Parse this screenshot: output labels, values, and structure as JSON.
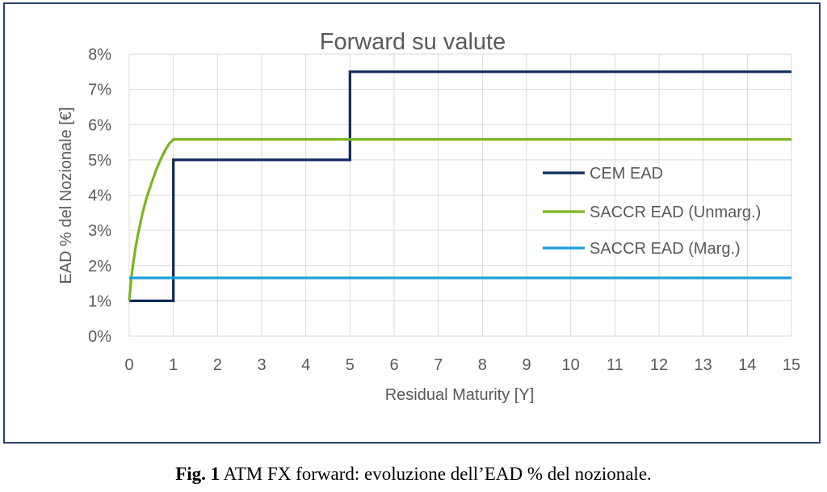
{
  "caption": {
    "label": "Fig. 1",
    "text": " ATM FX forward: evoluzione dell’EAD % del nozionale."
  },
  "colors": {
    "cem": "#0e2a5c",
    "saccr_unmarg": "#7ab51d",
    "saccr_marg": "#1ba1d8",
    "grid": "#d9d9d9",
    "text": "#595959",
    "frame": "#2b3f6b"
  },
  "chart_data": {
    "type": "line",
    "title": "Forward su valute",
    "xlabel": "Residual Maturity [Y]",
    "ylabel": "EAD  % del Nozionale [€]",
    "xlim": [
      0,
      15
    ],
    "ylim": [
      0,
      0.08
    ],
    "x_ticks": [
      0,
      1,
      2,
      3,
      4,
      5,
      6,
      7,
      8,
      9,
      10,
      11,
      12,
      13,
      14,
      15
    ],
    "x_tick_labels": [
      "0",
      "1",
      "2",
      "3",
      "4",
      "5",
      "6",
      "7",
      "8",
      "9",
      "10",
      "11",
      "12",
      "13",
      "14",
      "15"
    ],
    "y_ticks": [
      0,
      0.01,
      0.02,
      0.03,
      0.04,
      0.05,
      0.06,
      0.07,
      0.08
    ],
    "y_tick_labels": [
      "0%",
      "1%",
      "2%",
      "3%",
      "4%",
      "5%",
      "6%",
      "7%",
      "8%"
    ],
    "grid": true,
    "legend_position": "center-right",
    "series": [
      {
        "name": "CEM EAD",
        "color_key": "cem",
        "points": [
          [
            0,
            0.01
          ],
          [
            1,
            0.01
          ],
          [
            1,
            0.05
          ],
          [
            5,
            0.05
          ],
          [
            5,
            0.075
          ],
          [
            15,
            0.075
          ]
        ]
      },
      {
        "name": "SACCR EAD (Unmarg.)",
        "color_key": "saccr_unmarg",
        "points": [
          [
            0,
            0.01
          ],
          [
            0.05,
            0.0168
          ],
          [
            0.1,
            0.0215
          ],
          [
            0.15,
            0.0255
          ],
          [
            0.2,
            0.029
          ],
          [
            0.3,
            0.0348
          ],
          [
            0.4,
            0.0395
          ],
          [
            0.5,
            0.0432
          ],
          [
            0.6,
            0.0468
          ],
          [
            0.7,
            0.0498
          ],
          [
            0.8,
            0.0524
          ],
          [
            0.9,
            0.0545
          ],
          [
            1,
            0.0558
          ],
          [
            15,
            0.0558
          ]
        ]
      },
      {
        "name": "SACCR EAD (Marg.)",
        "color_key": "saccr_marg",
        "points": [
          [
            0,
            0.0165
          ],
          [
            15,
            0.0165
          ]
        ]
      }
    ]
  }
}
